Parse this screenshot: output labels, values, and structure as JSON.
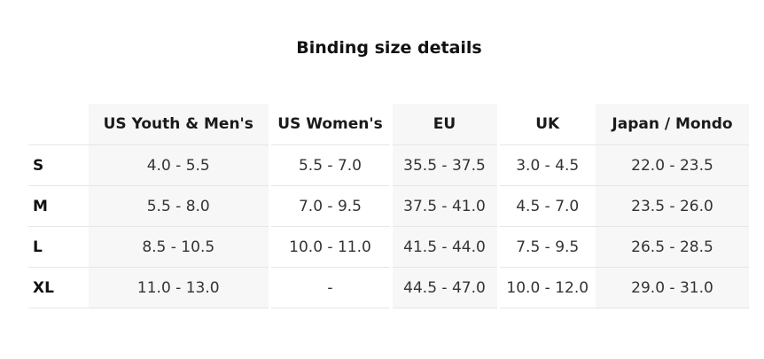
{
  "title": "Binding size details",
  "table": {
    "headers": [
      "US Youth & Men's",
      "US Women's",
      "EU",
      "UK",
      "Japan / Mondo"
    ],
    "rows": [
      {
        "size": "S",
        "cells": [
          "4.0 - 5.5",
          "5.5 - 7.0",
          "35.5 - 37.5",
          "3.0 - 4.5",
          "22.0 - 23.5"
        ]
      },
      {
        "size": "M",
        "cells": [
          "5.5 - 8.0",
          "7.0 - 9.5",
          "37.5 - 41.0",
          "4.5 - 7.0",
          "23.5 - 26.0"
        ]
      },
      {
        "size": "L",
        "cells": [
          "8.5 - 10.5",
          "10.0 - 11.0",
          "41.5 - 44.0",
          "7.5 - 9.5",
          "26.5 - 28.5"
        ]
      },
      {
        "size": "XL",
        "cells": [
          "11.0 - 13.0",
          "-",
          "44.5 - 47.0",
          "10.0 - 12.0",
          "29.0 - 31.0"
        ]
      }
    ]
  },
  "colors": {
    "shaded_column": "#f7f7f7",
    "row_divider": "#e6e6e6",
    "text": "#333333"
  }
}
